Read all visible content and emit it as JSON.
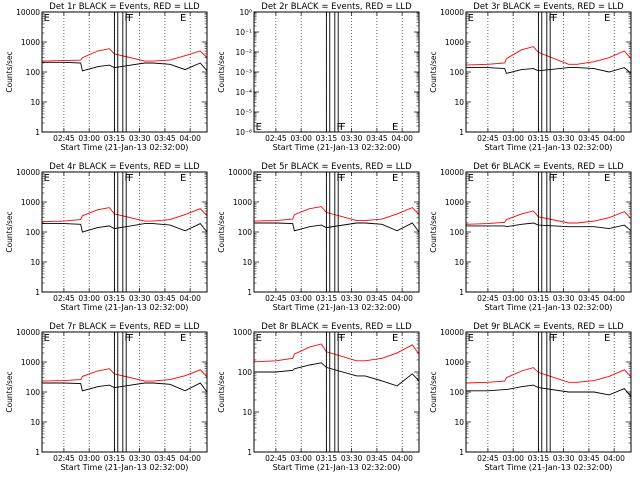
{
  "chart_data": [
    {
      "type": "line",
      "title": "Det 1r BLACK = Events, RED = LLD",
      "xlabel": "Start Time (21-Jan-13 02:32:00)",
      "ylabel": "Counts/sec",
      "yscale": "log",
      "ylim": [
        1,
        10000
      ],
      "x_ticks": [
        "02:45",
        "03:00",
        "03:15",
        "03:30",
        "03:45",
        "04:00"
      ],
      "y_ticks": [
        "1",
        "10",
        "100",
        "1000",
        "10000"
      ],
      "series": [
        {
          "color": "#000000",
          "x": [
            "02:32",
            "02:45",
            "02:55",
            "02:56",
            "03:05",
            "03:12",
            "03:15",
            "03:33",
            "03:38",
            "03:48",
            "03:57",
            "04:06",
            "04:10"
          ],
          "y": [
            210,
            210,
            200,
            110,
            150,
            170,
            140,
            200,
            200,
            180,
            120,
            200,
            110
          ]
        },
        {
          "color": "#ff0000",
          "x": [
            "02:32",
            "02:45",
            "02:55",
            "02:56",
            "03:05",
            "03:12",
            "03:15",
            "03:33",
            "03:38",
            "03:48",
            "03:57",
            "04:06",
            "04:10"
          ],
          "y": [
            230,
            240,
            250,
            300,
            500,
            600,
            400,
            230,
            230,
            250,
            350,
            500,
            300
          ]
        }
      ],
      "markers": [
        "E",
        "F",
        "F",
        "E"
      ]
    },
    {
      "type": "line",
      "title": "Det 2r BLACK = Events, RED = LLD",
      "xlabel": "Start Time (21-Jan-13 02:32:00)",
      "ylabel": "Counts/sec",
      "yscale": "log",
      "ylim": [
        1e-06,
        1
      ],
      "x_ticks": [
        "02:45",
        "03:00",
        "03:15",
        "03:30",
        "03:45",
        "04:00"
      ],
      "y_ticks": [
        "10⁻⁶",
        "10⁻⁵",
        "10⁻⁴",
        "10⁻³",
        "10⁻²",
        "10⁻¹",
        "10⁰"
      ],
      "series": [],
      "markers": [
        "E",
        "F",
        "F",
        "E"
      ]
    },
    {
      "type": "line",
      "title": "Det 3r BLACK = Events, RED = LLD",
      "xlabel": "Start Time (21-Jan-13 02:32:00)",
      "ylabel": "Counts/sec",
      "yscale": "log",
      "ylim": [
        1,
        10000
      ],
      "x_ticks": [
        "02:45",
        "03:00",
        "03:15",
        "03:30",
        "03:45",
        "04:00"
      ],
      "y_ticks": [
        "1",
        "10",
        "100",
        "1000",
        "10000"
      ],
      "series": [
        {
          "color": "#000000",
          "x": [
            "02:32",
            "02:45",
            "02:55",
            "02:56",
            "03:05",
            "03:12",
            "03:15",
            "03:33",
            "03:38",
            "03:48",
            "03:57",
            "04:06",
            "04:10"
          ],
          "y": [
            140,
            140,
            130,
            90,
            120,
            130,
            110,
            140,
            140,
            130,
            100,
            140,
            90
          ]
        },
        {
          "color": "#ff0000",
          "x": [
            "02:32",
            "02:45",
            "02:55",
            "02:56",
            "03:05",
            "03:12",
            "03:15",
            "03:33",
            "03:38",
            "03:48",
            "03:57",
            "04:06",
            "04:10"
          ],
          "y": [
            170,
            180,
            200,
            280,
            550,
            700,
            450,
            180,
            180,
            220,
            300,
            500,
            280
          ]
        }
      ],
      "markers": [
        "E",
        "F",
        "F",
        "E"
      ]
    },
    {
      "type": "line",
      "title": "Det 4r BLACK = Events, RED = LLD",
      "xlabel": "Start Time (21-Jan-13 02:32:00)",
      "ylabel": "Counts/sec",
      "yscale": "log",
      "ylim": [
        1,
        10000
      ],
      "x_ticks": [
        "02:45",
        "03:00",
        "03:15",
        "03:30",
        "03:45",
        "04:00"
      ],
      "y_ticks": [
        "1",
        "10",
        "100",
        "1000",
        "10000"
      ],
      "series": [
        {
          "color": "#000000",
          "x": [
            "02:32",
            "02:45",
            "02:55",
            "02:56",
            "03:05",
            "03:12",
            "03:15",
            "03:33",
            "03:38",
            "03:48",
            "03:57",
            "04:06",
            "04:10"
          ],
          "y": [
            190,
            190,
            180,
            100,
            140,
            160,
            130,
            190,
            190,
            170,
            110,
            190,
            100
          ]
        },
        {
          "color": "#ff0000",
          "x": [
            "02:32",
            "02:45",
            "02:55",
            "02:56",
            "03:05",
            "03:12",
            "03:15",
            "03:33",
            "03:38",
            "03:48",
            "03:57",
            "04:06",
            "04:10"
          ],
          "y": [
            220,
            230,
            260,
            350,
            550,
            650,
            400,
            230,
            230,
            260,
            380,
            600,
            350
          ]
        }
      ],
      "markers": [
        "E",
        "F",
        "F",
        "E"
      ]
    },
    {
      "type": "line",
      "title": "Det 5r BLACK = Events, RED = LLD",
      "xlabel": "Start Time (21-Jan-13 02:32:00)",
      "ylabel": "Counts/sec",
      "yscale": "log",
      "ylim": [
        1,
        10000
      ],
      "x_ticks": [
        "02:45",
        "03:00",
        "03:15",
        "03:30",
        "03:45",
        "04:00"
      ],
      "y_ticks": [
        "1",
        "10",
        "100",
        "1000",
        "10000"
      ],
      "series": [
        {
          "color": "#000000",
          "x": [
            "02:32",
            "02:45",
            "02:55",
            "02:56",
            "03:05",
            "03:12",
            "03:15",
            "03:33",
            "03:38",
            "03:48",
            "03:57",
            "04:06",
            "04:10"
          ],
          "y": [
            200,
            200,
            190,
            110,
            150,
            170,
            140,
            200,
            200,
            180,
            110,
            200,
            100
          ]
        },
        {
          "color": "#ff0000",
          "x": [
            "02:32",
            "02:45",
            "02:55",
            "02:56",
            "03:05",
            "03:12",
            "03:15",
            "03:33",
            "03:38",
            "03:48",
            "03:57",
            "04:06",
            "04:10"
          ],
          "y": [
            230,
            240,
            270,
            380,
            600,
            700,
            450,
            240,
            240,
            270,
            400,
            650,
            380
          ]
        }
      ],
      "markers": [
        "E",
        "F",
        "F",
        "E"
      ]
    },
    {
      "type": "line",
      "title": "Det 6r BLACK = Events, RED = LLD",
      "xlabel": "Start Time (21-Jan-13 02:32:00)",
      "ylabel": "Counts/sec",
      "yscale": "log",
      "ylim": [
        1,
        10000
      ],
      "x_ticks": [
        "02:45",
        "03:00",
        "03:15",
        "03:30",
        "03:45",
        "04:00"
      ],
      "y_ticks": [
        "1",
        "10",
        "100",
        "1000",
        "10000"
      ],
      "series": [
        {
          "color": "#000000",
          "x": [
            "02:32",
            "02:45",
            "02:55",
            "02:56",
            "03:05",
            "03:12",
            "03:15",
            "03:33",
            "03:38",
            "03:48",
            "03:57",
            "04:06",
            "04:10"
          ],
          "y": [
            160,
            160,
            160,
            150,
            180,
            200,
            170,
            150,
            150,
            150,
            130,
            170,
            110
          ]
        },
        {
          "color": "#ff0000",
          "x": [
            "02:32",
            "02:45",
            "02:55",
            "02:56",
            "03:05",
            "03:12",
            "03:15",
            "03:33",
            "03:38",
            "03:48",
            "03:57",
            "04:06",
            "04:10"
          ],
          "y": [
            180,
            190,
            210,
            260,
            400,
            500,
            320,
            200,
            200,
            230,
            300,
            480,
            280
          ]
        }
      ],
      "markers": [
        "E",
        "F",
        "F",
        "E"
      ]
    },
    {
      "type": "line",
      "title": "Det 7r BLACK = Events, RED = LLD",
      "xlabel": "Start Time (21-Jan-13 02:32:00)",
      "ylabel": "Counts/sec",
      "yscale": "log",
      "ylim": [
        1,
        10000
      ],
      "x_ticks": [
        "02:45",
        "03:00",
        "03:15",
        "03:30",
        "03:45",
        "04:00"
      ],
      "y_ticks": [
        "1",
        "10",
        "100",
        "1000",
        "10000"
      ],
      "series": [
        {
          "color": "#000000",
          "x": [
            "02:32",
            "02:45",
            "02:55",
            "02:56",
            "03:05",
            "03:12",
            "03:15",
            "03:33",
            "03:38",
            "03:48",
            "03:57",
            "04:06",
            "04:10"
          ],
          "y": [
            200,
            200,
            190,
            110,
            150,
            170,
            140,
            200,
            200,
            180,
            110,
            200,
            100
          ]
        },
        {
          "color": "#ff0000",
          "x": [
            "02:32",
            "02:45",
            "02:55",
            "02:56",
            "03:05",
            "03:12",
            "03:15",
            "03:33",
            "03:38",
            "03:48",
            "03:57",
            "04:06",
            "04:10"
          ],
          "y": [
            230,
            240,
            260,
            330,
            500,
            600,
            400,
            230,
            230,
            260,
            350,
            550,
            320
          ]
        }
      ],
      "markers": [
        "E",
        "F",
        "F",
        "E"
      ]
    },
    {
      "type": "line",
      "title": "Det 8r BLACK = Events, RED = LLD",
      "xlabel": "Start Time (21-Jan-13 02:32:00)",
      "ylabel": "Counts/sec",
      "yscale": "log",
      "ylim": [
        1,
        1000
      ],
      "x_ticks": [
        "02:45",
        "03:00",
        "03:15",
        "03:30",
        "03:45",
        "04:00"
      ],
      "y_ticks": [
        "1",
        "10",
        "100",
        "1000"
      ],
      "series": [
        {
          "color": "#000000",
          "x": [
            "02:32",
            "02:45",
            "02:55",
            "02:56",
            "03:05",
            "03:12",
            "03:15",
            "03:33",
            "03:38",
            "03:48",
            "03:57",
            "04:06",
            "04:10"
          ],
          "y": [
            100,
            100,
            110,
            120,
            150,
            170,
            130,
            80,
            80,
            60,
            45,
            90,
            60
          ]
        },
        {
          "color": "#ff0000",
          "x": [
            "02:32",
            "02:45",
            "02:55",
            "02:56",
            "03:05",
            "03:12",
            "03:15",
            "03:33",
            "03:38",
            "03:48",
            "03:57",
            "04:06",
            "04:10"
          ],
          "y": [
            180,
            190,
            220,
            280,
            420,
            500,
            320,
            190,
            190,
            220,
            300,
            480,
            280
          ]
        }
      ],
      "markers": [
        "E",
        "F",
        "F",
        "E"
      ]
    },
    {
      "type": "line",
      "title": "Det 9r BLACK = Events, RED = LLD",
      "xlabel": "Start Time (21-Jan-13 02:32:00)",
      "ylabel": "Counts/sec",
      "yscale": "log",
      "ylim": [
        1,
        10000
      ],
      "x_ticks": [
        "02:45",
        "03:00",
        "03:15",
        "03:30",
        "03:45",
        "04:00"
      ],
      "y_ticks": [
        "1",
        "10",
        "100",
        "1000",
        "10000"
      ],
      "series": [
        {
          "color": "#000000",
          "x": [
            "02:32",
            "02:45",
            "02:55",
            "02:56",
            "03:05",
            "03:12",
            "03:15",
            "03:33",
            "03:38",
            "03:48",
            "03:57",
            "04:06",
            "04:10"
          ],
          "y": [
            110,
            110,
            120,
            120,
            150,
            170,
            140,
            100,
            100,
            100,
            80,
            130,
            70
          ]
        },
        {
          "color": "#ff0000",
          "x": [
            "02:32",
            "02:45",
            "02:55",
            "02:56",
            "03:05",
            "03:12",
            "03:15",
            "03:33",
            "03:38",
            "03:48",
            "03:57",
            "04:06",
            "04:10"
          ],
          "y": [
            200,
            210,
            230,
            300,
            500,
            650,
            450,
            210,
            210,
            240,
            330,
            550,
            320
          ]
        }
      ],
      "markers": [
        "E",
        "F",
        "F",
        "E"
      ]
    }
  ]
}
